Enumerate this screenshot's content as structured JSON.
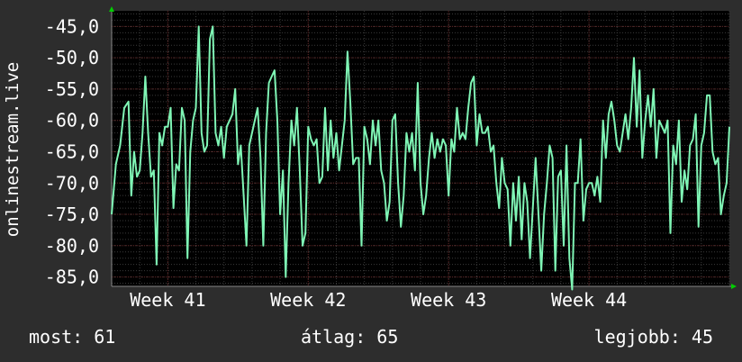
{
  "chart_data": {
    "type": "line",
    "ylabel": "onlinestream.live",
    "ylim": [
      -86.5,
      -42.5
    ],
    "yticks": [
      "-45,0",
      "-50,0",
      "-55,0",
      "-60,0",
      "-65,0",
      "-70,0",
      "-75,0",
      "-80,0",
      "-85,0"
    ],
    "ytick_values": [
      -45,
      -50,
      -55,
      -60,
      -65,
      -70,
      -75,
      -80,
      -85
    ],
    "xticks": [
      "Week 41",
      "Week 42",
      "Week 43",
      "Week 44"
    ],
    "xtick_positions": [
      4,
      14,
      24,
      34
    ],
    "xlim": [
      0,
      44
    ],
    "grid": true,
    "colors": {
      "background": "#2d2d2d",
      "plot_bg": "#000000",
      "grid": "#3a3a3a",
      "grid_major": "#5a2020",
      "line": "#7ff5b5",
      "arrow": "#00cc00"
    },
    "series": [
      {
        "values": [
          [
            0,
            -75
          ],
          [
            0.3,
            -67
          ],
          [
            0.6,
            -64
          ],
          [
            0.9,
            -58
          ],
          [
            1.2,
            -57
          ],
          [
            1.4,
            -72
          ],
          [
            1.6,
            -65
          ],
          [
            1.8,
            -69
          ],
          [
            2.0,
            -68
          ],
          [
            2.2,
            -62
          ],
          [
            2.4,
            -53
          ],
          [
            2.6,
            -62
          ],
          [
            2.8,
            -69
          ],
          [
            3.0,
            -68
          ],
          [
            3.2,
            -83
          ],
          [
            3.4,
            -62
          ],
          [
            3.6,
            -64
          ],
          [
            3.8,
            -61
          ],
          [
            4.0,
            -61
          ],
          [
            4.2,
            -58
          ],
          [
            4.4,
            -74
          ],
          [
            4.6,
            -67
          ],
          [
            4.8,
            -68
          ],
          [
            5.0,
            -58
          ],
          [
            5.2,
            -60
          ],
          [
            5.4,
            -82
          ],
          [
            5.6,
            -65
          ],
          [
            5.8,
            -60
          ],
          [
            6.0,
            -58
          ],
          [
            6.2,
            -45
          ],
          [
            6.4,
            -62
          ],
          [
            6.6,
            -65
          ],
          [
            6.8,
            -64
          ],
          [
            7.0,
            -47
          ],
          [
            7.2,
            -45
          ],
          [
            7.4,
            -62
          ],
          [
            7.6,
            -64
          ],
          [
            7.8,
            -61
          ],
          [
            8.0,
            -66
          ],
          [
            8.2,
            -61
          ],
          [
            8.4,
            -60
          ],
          [
            8.6,
            -59
          ],
          [
            8.8,
            -55
          ],
          [
            9.0,
            -67
          ],
          [
            9.2,
            -64
          ],
          [
            9.4,
            -72
          ],
          [
            9.6,
            -80
          ],
          [
            9.8,
            -64
          ],
          [
            10.0,
            -62
          ],
          [
            10.2,
            -60
          ],
          [
            10.4,
            -58
          ],
          [
            10.6,
            -66
          ],
          [
            10.8,
            -80
          ],
          [
            11.0,
            -62
          ],
          [
            11.2,
            -54
          ],
          [
            11.4,
            -53
          ],
          [
            11.6,
            -52
          ],
          [
            11.8,
            -60
          ],
          [
            12.0,
            -75
          ],
          [
            12.2,
            -68
          ],
          [
            12.4,
            -85
          ],
          [
            12.6,
            -70
          ],
          [
            12.8,
            -60
          ],
          [
            13.0,
            -64
          ],
          [
            13.2,
            -58
          ],
          [
            13.4,
            -68
          ],
          [
            13.6,
            -80
          ],
          [
            13.8,
            -78
          ],
          [
            14.0,
            -61
          ],
          [
            14.2,
            -63
          ],
          [
            14.4,
            -64
          ],
          [
            14.6,
            -63
          ],
          [
            14.8,
            -70
          ],
          [
            15.0,
            -69
          ],
          [
            15.2,
            -58
          ],
          [
            15.4,
            -68
          ],
          [
            15.6,
            -60
          ],
          [
            15.8,
            -66
          ],
          [
            16.0,
            -62
          ],
          [
            16.2,
            -68
          ],
          [
            16.4,
            -64
          ],
          [
            16.6,
            -60
          ],
          [
            16.8,
            -49
          ],
          [
            17.0,
            -57
          ],
          [
            17.2,
            -67
          ],
          [
            17.4,
            -66
          ],
          [
            17.6,
            -66
          ],
          [
            17.8,
            -80
          ],
          [
            18.0,
            -61
          ],
          [
            18.2,
            -63
          ],
          [
            18.4,
            -67
          ],
          [
            18.6,
            -60
          ],
          [
            18.8,
            -64
          ],
          [
            19.0,
            -60
          ],
          [
            19.2,
            -68
          ],
          [
            19.4,
            -70
          ],
          [
            19.6,
            -76
          ],
          [
            19.8,
            -73
          ],
          [
            20.0,
            -60
          ],
          [
            20.2,
            -59
          ],
          [
            20.4,
            -70
          ],
          [
            20.6,
            -77
          ],
          [
            20.8,
            -72
          ],
          [
            21.0,
            -62
          ],
          [
            21.2,
            -65
          ],
          [
            21.4,
            -62
          ],
          [
            21.6,
            -68
          ],
          [
            21.8,
            -54
          ],
          [
            22.0,
            -70
          ],
          [
            22.2,
            -75
          ],
          [
            22.4,
            -72
          ],
          [
            22.6,
            -66
          ],
          [
            22.8,
            -62
          ],
          [
            23.0,
            -66
          ],
          [
            23.2,
            -63
          ],
          [
            23.4,
            -65
          ],
          [
            23.6,
            -63
          ],
          [
            23.8,
            -64
          ],
          [
            24.0,
            -72
          ],
          [
            24.2,
            -63
          ],
          [
            24.4,
            -65
          ],
          [
            24.6,
            -58
          ],
          [
            24.8,
            -63
          ],
          [
            25.0,
            -62
          ],
          [
            25.2,
            -63
          ],
          [
            25.4,
            -58
          ],
          [
            25.6,
            -54
          ],
          [
            25.8,
            -53
          ],
          [
            26.0,
            -64
          ],
          [
            26.2,
            -59
          ],
          [
            26.4,
            -62
          ],
          [
            26.6,
            -62
          ],
          [
            26.8,
            -61
          ],
          [
            27.0,
            -65
          ],
          [
            27.2,
            -64
          ],
          [
            27.4,
            -70
          ],
          [
            27.6,
            -74
          ],
          [
            27.8,
            -66
          ],
          [
            28.0,
            -70
          ],
          [
            28.2,
            -71
          ],
          [
            28.4,
            -80
          ],
          [
            28.6,
            -70
          ],
          [
            28.8,
            -76
          ],
          [
            29.0,
            -69
          ],
          [
            29.2,
            -79
          ],
          [
            29.4,
            -70
          ],
          [
            29.6,
            -73
          ],
          [
            29.8,
            -82
          ],
          [
            30.0,
            -74
          ],
          [
            30.2,
            -66
          ],
          [
            30.4,
            -75
          ],
          [
            30.6,
            -84
          ],
          [
            30.8,
            -75
          ],
          [
            31.0,
            -70
          ],
          [
            31.2,
            -64
          ],
          [
            31.4,
            -66
          ],
          [
            31.6,
            -84
          ],
          [
            31.8,
            -69
          ],
          [
            32.0,
            -68
          ],
          [
            32.2,
            -80
          ],
          [
            32.4,
            -64
          ],
          [
            32.6,
            -82
          ],
          [
            32.8,
            -87
          ],
          [
            33.0,
            -70
          ],
          [
            33.2,
            -70
          ],
          [
            33.4,
            -63
          ],
          [
            33.6,
            -76
          ],
          [
            33.8,
            -71
          ],
          [
            34.0,
            -70
          ],
          [
            34.2,
            -70
          ],
          [
            34.4,
            -72
          ],
          [
            34.6,
            -69
          ],
          [
            34.8,
            -73
          ],
          [
            35.0,
            -60
          ],
          [
            35.2,
            -66
          ],
          [
            35.4,
            -59
          ],
          [
            35.6,
            -57
          ],
          [
            35.8,
            -60
          ],
          [
            36.0,
            -64
          ],
          [
            36.2,
            -65
          ],
          [
            36.4,
            -62
          ],
          [
            36.6,
            -59
          ],
          [
            36.8,
            -63
          ],
          [
            37.0,
            -58
          ],
          [
            37.2,
            -50
          ],
          [
            37.4,
            -61
          ],
          [
            37.6,
            -52
          ],
          [
            37.8,
            -66
          ],
          [
            38.0,
            -60
          ],
          [
            38.2,
            -56
          ],
          [
            38.4,
            -61
          ],
          [
            38.6,
            -55
          ],
          [
            38.8,
            -66
          ],
          [
            39.0,
            -60
          ],
          [
            39.2,
            -61
          ],
          [
            39.4,
            -62
          ],
          [
            39.6,
            -60
          ],
          [
            39.8,
            -78
          ],
          [
            40.0,
            -64
          ],
          [
            40.2,
            -67
          ],
          [
            40.4,
            -60
          ],
          [
            40.6,
            -73
          ],
          [
            40.8,
            -68
          ],
          [
            41.0,
            -71
          ],
          [
            41.2,
            -64
          ],
          [
            41.4,
            -63
          ],
          [
            41.6,
            -59
          ],
          [
            41.8,
            -77
          ],
          [
            42.0,
            -64
          ],
          [
            42.2,
            -62
          ],
          [
            42.4,
            -56
          ],
          [
            42.6,
            -56
          ],
          [
            42.8,
            -65
          ],
          [
            43.0,
            -67
          ],
          [
            43.2,
            -66
          ],
          [
            43.4,
            -75
          ],
          [
            43.6,
            -72
          ],
          [
            43.8,
            -70
          ],
          [
            44.0,
            -61
          ]
        ]
      }
    ]
  },
  "footer": {
    "current": "most: 61",
    "avg": "átlag: 65",
    "best": "legjobb: 45"
  }
}
